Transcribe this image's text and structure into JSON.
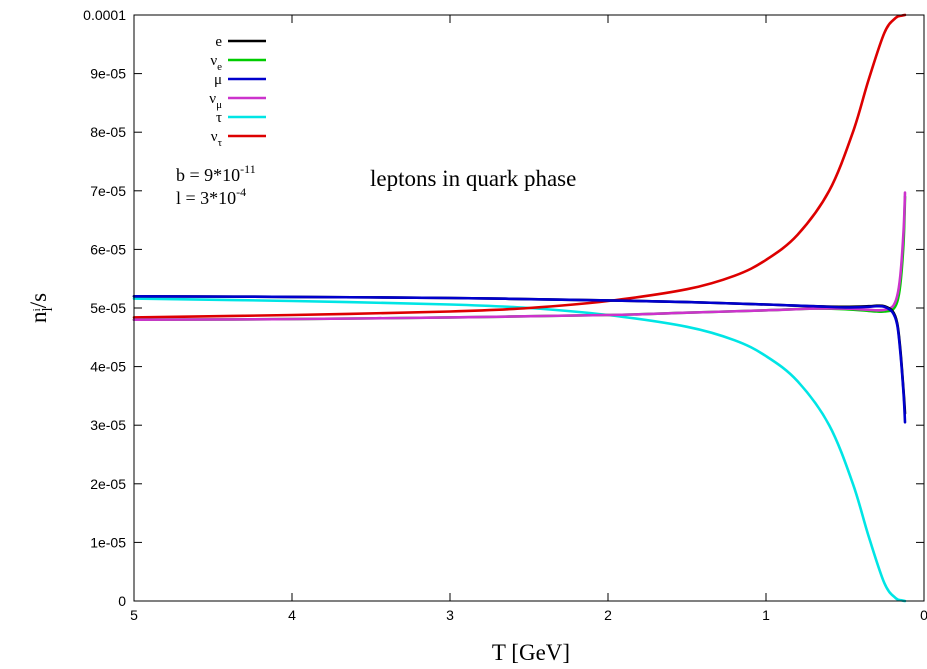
{
  "chart_data": {
    "type": "line",
    "title": "",
    "annotation": "leptons in quark phase",
    "params": {
      "b_label": "b = 9*10",
      "b_exp": "-11",
      "l_label": "l = 3*10",
      "l_exp": "-4"
    },
    "xlabel": "T [GeV]",
    "ylabel_main": "n",
    "ylabel_sub": "l",
    "ylabel_sub2": "i",
    "ylabel_tail": "/s",
    "xlim": [
      5,
      0
    ],
    "ylim": [
      0,
      0.0001
    ],
    "x_ticks": [
      5,
      4,
      3,
      2,
      1,
      0
    ],
    "x_tick_labels": [
      "5",
      "4",
      "3",
      "2",
      "1",
      "0"
    ],
    "y_ticks": [
      0,
      1e-05,
      2e-05,
      3e-05,
      4e-05,
      5e-05,
      6e-05,
      7e-05,
      8e-05,
      9e-05,
      0.0001
    ],
    "y_tick_labels": [
      "0",
      "1e-05",
      "2e-05",
      "3e-05",
      "4e-05",
      "5e-05",
      "6e-05",
      "7e-05",
      "8e-05",
      "9e-05",
      "0.0001"
    ],
    "legend_position": "top-left",
    "series": [
      {
        "name": "e",
        "name_sub": "",
        "color": "#000000",
        "x": [
          5,
          4,
          3,
          2,
          1.5,
          1,
          0.7,
          0.5,
          0.35,
          0.3,
          0.25,
          0.2,
          0.17,
          0.15,
          0.13,
          0.12
        ],
        "y": [
          5.2e-05,
          5.19e-05,
          5.17e-05,
          5.13e-05,
          5.1e-05,
          5.06e-05,
          5.03e-05,
          5.02e-05,
          5.03e-05,
          5.04e-05,
          5.03e-05,
          4.95e-05,
          4.75e-05,
          4.3e-05,
          3.6e-05,
          3.2e-05
        ]
      },
      {
        "name": "ν",
        "name_sub": "e",
        "color": "#00cc00",
        "x": [
          5,
          4,
          3,
          2,
          1.5,
          1,
          0.7,
          0.5,
          0.35,
          0.3,
          0.25,
          0.2,
          0.17,
          0.15,
          0.13,
          0.12
        ],
        "y": [
          4.8e-05,
          4.81e-05,
          4.84e-05,
          4.88e-05,
          4.92e-05,
          4.96e-05,
          4.99e-05,
          4.98e-05,
          4.95e-05,
          4.94e-05,
          4.94e-05,
          4.97e-05,
          5.1e-05,
          5.4e-05,
          6.1e-05,
          6.9e-05
        ]
      },
      {
        "name": "μ",
        "name_sub": "",
        "color": "#0000cc",
        "x": [
          5,
          4,
          3,
          2,
          1.5,
          1,
          0.7,
          0.5,
          0.35,
          0.3,
          0.25,
          0.2,
          0.17,
          0.15,
          0.13,
          0.12
        ],
        "y": [
          5.2e-05,
          5.19e-05,
          5.17e-05,
          5.13e-05,
          5.1e-05,
          5.06e-05,
          5.03e-05,
          5.01e-05,
          5.02e-05,
          5.03e-05,
          5.02e-05,
          4.93e-05,
          4.72e-05,
          4.25e-05,
          3.55e-05,
          3.05e-05
        ]
      },
      {
        "name": "ν",
        "name_sub": "μ",
        "color": "#cc33cc",
        "x": [
          5,
          4,
          3,
          2,
          1.5,
          1,
          0.7,
          0.5,
          0.35,
          0.3,
          0.25,
          0.2,
          0.17,
          0.15,
          0.13,
          0.12
        ],
        "y": [
          4.8e-05,
          4.81e-05,
          4.84e-05,
          4.88e-05,
          4.92e-05,
          4.96e-05,
          4.99e-05,
          4.99e-05,
          4.97e-05,
          4.96e-05,
          4.97e-05,
          5.02e-05,
          5.2e-05,
          5.55e-05,
          6.3e-05,
          6.97e-05
        ]
      },
      {
        "name": "τ",
        "name_sub": "",
        "color": "#00e5e5",
        "x": [
          5,
          4,
          3,
          2.5,
          2,
          1.5,
          1.2,
          1,
          0.8,
          0.6,
          0.45,
          0.35,
          0.25,
          0.18,
          0.14,
          0.12
        ],
        "y": [
          5.16e-05,
          5.12e-05,
          5.06e-05,
          5e-05,
          4.88e-05,
          4.68e-05,
          4.45e-05,
          4.18e-05,
          3.75e-05,
          3e-05,
          2e-05,
          1.1e-05,
          3e-06,
          5e-07,
          1e-07,
          0
        ]
      },
      {
        "name": "ν",
        "name_sub": "τ",
        "color": "#dd0000",
        "x": [
          5,
          4,
          3,
          2.5,
          2,
          1.5,
          1.2,
          1,
          0.8,
          0.6,
          0.45,
          0.35,
          0.25,
          0.18,
          0.14,
          0.12
        ],
        "y": [
          4.84e-05,
          4.88e-05,
          4.94e-05,
          5e-05,
          5.12e-05,
          5.32e-05,
          5.55e-05,
          5.82e-05,
          6.25e-05,
          7e-05,
          8e-05,
          8.9e-05,
          9.7e-05,
          9.95e-05,
          9.99e-05,
          0.0001
        ]
      }
    ]
  }
}
